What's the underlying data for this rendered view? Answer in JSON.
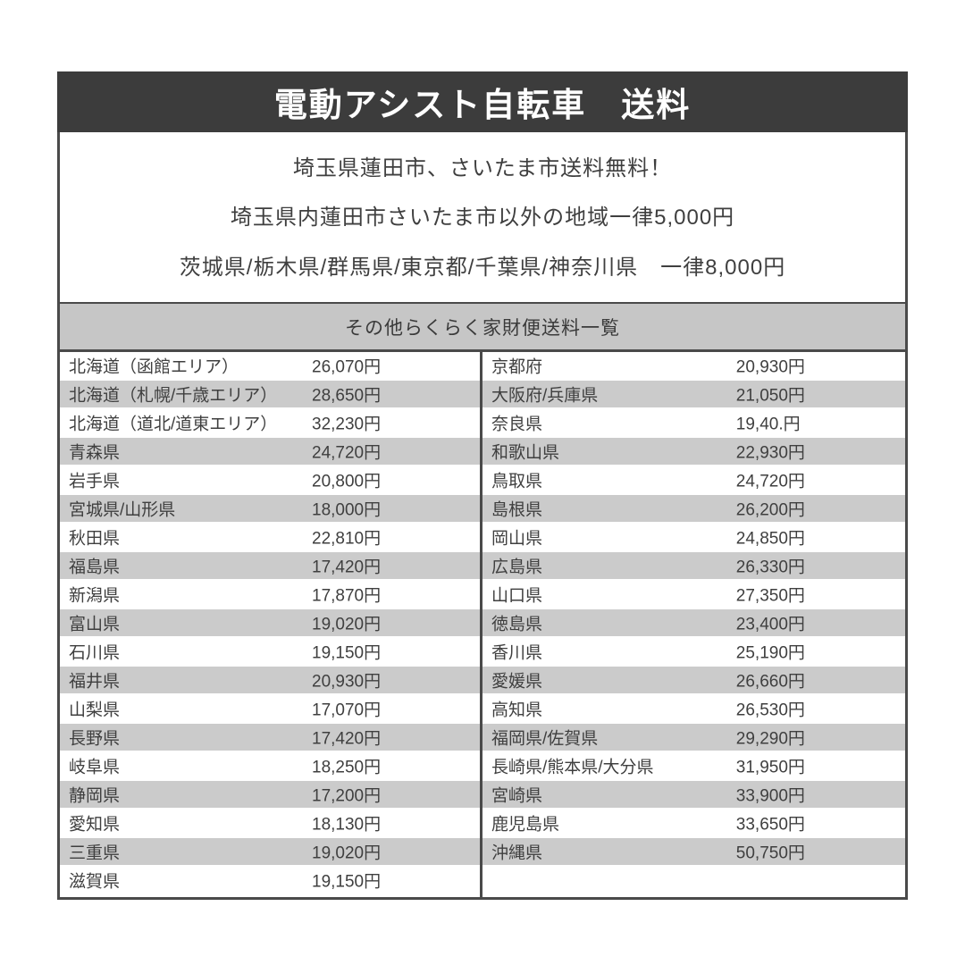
{
  "title": "電動アシスト自転車　送料",
  "notes": [
    "埼玉県蓮田市、さいたま市送料無料！",
    "埼玉県内蓮田市さいたま市以外の地域一律5,000円",
    "茨城県/栃木県/群馬県/東京都/千葉県/神奈川県　一律8,000円"
  ],
  "subheader": "その他らくらく家財便送料一覧",
  "table": {
    "left_rows": [
      {
        "name": "北海道（函館エリア）",
        "price": "26,070円"
      },
      {
        "name": "北海道（札幌/千歳エリア）",
        "price": "28,650円"
      },
      {
        "name": "北海道（道北/道東エリア）",
        "price": "32,230円"
      },
      {
        "name": "青森県",
        "price": "24,720円"
      },
      {
        "name": "岩手県",
        "price": "20,800円"
      },
      {
        "name": "宮城県/山形県",
        "price": "18,000円"
      },
      {
        "name": "秋田県",
        "price": "22,810円"
      },
      {
        "name": "福島県",
        "price": "17,420円"
      },
      {
        "name": "新潟県",
        "price": "17,870円"
      },
      {
        "name": "富山県",
        "price": "19,020円"
      },
      {
        "name": "石川県",
        "price": "19,150円"
      },
      {
        "name": "福井県",
        "price": "20,930円"
      },
      {
        "name": "山梨県",
        "price": "17,070円"
      },
      {
        "name": "長野県",
        "price": "17,420円"
      },
      {
        "name": "岐阜県",
        "price": "18,250円"
      },
      {
        "name": "静岡県",
        "price": "17,200円"
      },
      {
        "name": "愛知県",
        "price": "18,130円"
      },
      {
        "name": "三重県",
        "price": "19,020円"
      },
      {
        "name": "滋賀県",
        "price": "19,150円"
      }
    ],
    "right_rows": [
      {
        "name": "京都府",
        "price": "20,930円"
      },
      {
        "name": "大阪府/兵庫県",
        "price": "21,050円"
      },
      {
        "name": "奈良県",
        "price": "19,40.円"
      },
      {
        "name": "和歌山県",
        "price": "22,930円"
      },
      {
        "name": "鳥取県",
        "price": "24,720円"
      },
      {
        "name": "島根県",
        "price": "26,200円"
      },
      {
        "name": "岡山県",
        "price": "24,850円"
      },
      {
        "name": "広島県",
        "price": "26,330円"
      },
      {
        "name": "山口県",
        "price": "27,350円"
      },
      {
        "name": "徳島県",
        "price": "23,400円"
      },
      {
        "name": "香川県",
        "price": "25,190円"
      },
      {
        "name": "愛媛県",
        "price": "26,660円"
      },
      {
        "name": "高知県",
        "price": "26,530円"
      },
      {
        "name": "福岡県/佐賀県",
        "price": "29,290円"
      },
      {
        "name": "長崎県/熊本県/大分県",
        "price": "31,950円"
      },
      {
        "name": "宮崎県",
        "price": "33,900円"
      },
      {
        "name": "鹿児島県",
        "price": "33,650円"
      },
      {
        "name": "沖縄県",
        "price": "50,750円"
      }
    ]
  },
  "colors": {
    "title_bar_bg": "#3c3c3c",
    "title_text": "#ffffff",
    "subheader_bg": "#c6c6c6",
    "alt_row_bg": "#cbcbcb",
    "border": "#4a4a4a",
    "body_text": "#3f3f3f"
  }
}
